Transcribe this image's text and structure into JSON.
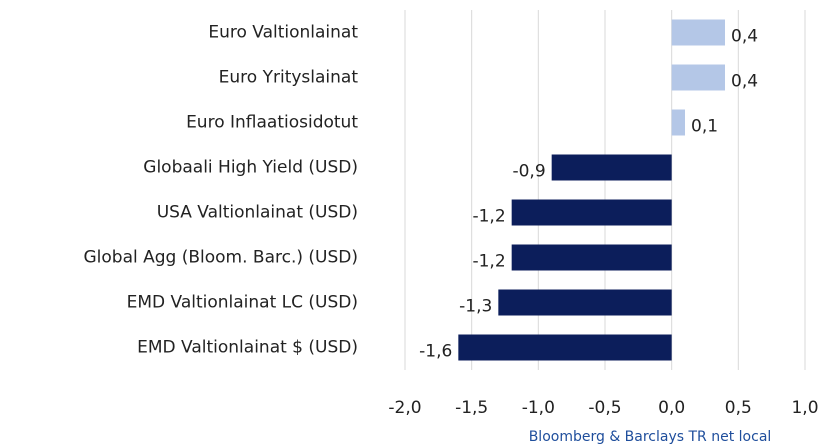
{
  "chart_data": {
    "type": "hbar",
    "categories": [
      "Euro Valtionlainat",
      "Euro Yrityslainat",
      "Euro Inflaatiosidotut",
      "Globaali High Yield (USD)",
      "USA Valtionlainat (USD)",
      "Global Agg (Bloom. Barc.) (USD)",
      "EMD Valtionlainat LC (USD)",
      "EMD Valtionlainat $ (USD)"
    ],
    "values": [
      0.4,
      0.4,
      0.1,
      -0.9,
      -1.2,
      -1.2,
      -1.3,
      -1.6
    ],
    "value_labels": [
      "0,4",
      "0,4",
      "0,1",
      "-0,9",
      "-1,2",
      "-1,2",
      "-1,3",
      "-1,6"
    ],
    "colors": [
      "#b4c7e7",
      "#b4c7e7",
      "#b4c7e7",
      "#0c1e5b",
      "#0c1e5b",
      "#0c1e5b",
      "#0c1e5b",
      "#0c1e5b"
    ],
    "xlim": [
      -2.0,
      1.0
    ],
    "xticks": [
      {
        "value": -2.0,
        "label": "-2,0"
      },
      {
        "value": -1.5,
        "label": "-1,5"
      },
      {
        "value": -1.0,
        "label": "-1,0"
      },
      {
        "value": -0.5,
        "label": "-0,5"
      },
      {
        "value": 0.0,
        "label": "0,0"
      },
      {
        "value": 0.5,
        "label": "0,5"
      },
      {
        "value": 1.0,
        "label": "1,0"
      }
    ],
    "grid": true,
    "source": "Bloomberg & Barclays TR net local"
  }
}
